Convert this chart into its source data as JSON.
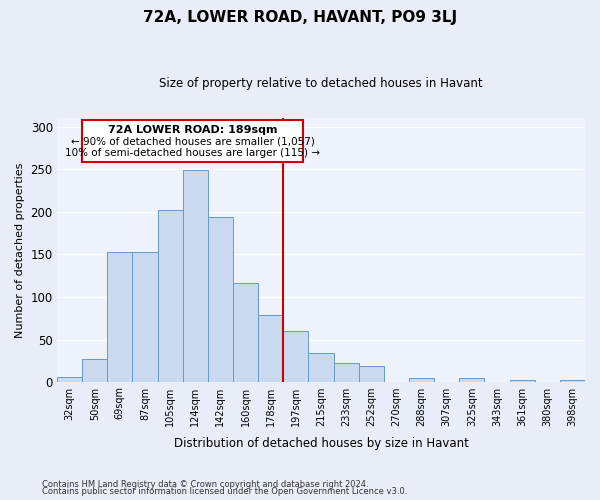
{
  "title": "72A, LOWER ROAD, HAVANT, PO9 3LJ",
  "subtitle": "Size of property relative to detached houses in Havant",
  "xlabel": "Distribution of detached houses by size in Havant",
  "ylabel": "Number of detached properties",
  "categories": [
    "32sqm",
    "50sqm",
    "69sqm",
    "87sqm",
    "105sqm",
    "124sqm",
    "142sqm",
    "160sqm",
    "178sqm",
    "197sqm",
    "215sqm",
    "233sqm",
    "252sqm",
    "270sqm",
    "288sqm",
    "307sqm",
    "325sqm",
    "343sqm",
    "361sqm",
    "380sqm",
    "398sqm"
  ],
  "bar_values": [
    6,
    27,
    153,
    153,
    202,
    249,
    194,
    117,
    79,
    60,
    34,
    22,
    19,
    0,
    5,
    0,
    5,
    0,
    3,
    0,
    3
  ],
  "bar_color": "#c9d9f0",
  "bar_edgecolor": "#6699cc",
  "ylim": [
    0,
    310
  ],
  "yticks": [
    0,
    50,
    100,
    150,
    200,
    250,
    300
  ],
  "vline_x_index": 9,
  "vline_color": "#cc0000",
  "annotation_title": "72A LOWER ROAD: 189sqm",
  "annotation_line1": "← 90% of detached houses are smaller (1,057)",
  "annotation_line2": "10% of semi-detached houses are larger (115) →",
  "annotation_box_color": "#ffffff",
  "annotation_box_edgecolor": "#cc0000",
  "footnote1": "Contains HM Land Registry data © Crown copyright and database right 2024.",
  "footnote2": "Contains public sector information licensed under the Open Government Licence v3.0.",
  "bg_color": "#e8edf7",
  "plot_bg_color": "#eef2fa",
  "grid_color": "#ffffff"
}
